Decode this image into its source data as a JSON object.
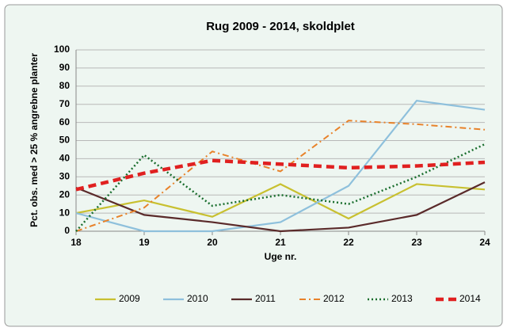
{
  "chart_data": {
    "type": "line",
    "title": "Rug 2009 - 2014, skoldplet",
    "x_label": "Uge nr.",
    "y_label": "Pct. obs. med > 25 % angrebne planter",
    "x": [
      18,
      19,
      20,
      21,
      22,
      23,
      24
    ],
    "xlim": [
      18,
      24
    ],
    "xticks": [
      18,
      19,
      20,
      21,
      22,
      23,
      24
    ],
    "ylim": [
      0,
      100
    ],
    "yticks": [
      0,
      10,
      20,
      30,
      40,
      50,
      60,
      70,
      80,
      90,
      100
    ],
    "grid": true,
    "legend": "bottom",
    "series": [
      {
        "name": "2009",
        "color": "#c8c030",
        "style": "solid",
        "values": [
          10,
          17,
          8,
          26,
          7,
          26,
          23
        ]
      },
      {
        "name": "2010",
        "color": "#8ec0dc",
        "style": "solid",
        "values": [
          10,
          0,
          0,
          5,
          25,
          72,
          67
        ]
      },
      {
        "name": "2011",
        "color": "#5a2a2a",
        "style": "solid",
        "values": [
          24,
          9,
          5,
          0,
          2,
          9,
          27
        ]
      },
      {
        "name": "2012",
        "color": "#e8822a",
        "style": "dashdot",
        "values": [
          0,
          13,
          44,
          33,
          61,
          59,
          56
        ]
      },
      {
        "name": "2013",
        "color": "#1a6e2e",
        "style": "dotted",
        "values": [
          0,
          42,
          14,
          20,
          15,
          30,
          48
        ]
      },
      {
        "name": "2014",
        "color": "#e02020",
        "style": "dashed",
        "values": [
          23,
          32,
          39,
          37,
          35,
          36,
          38
        ]
      }
    ]
  }
}
